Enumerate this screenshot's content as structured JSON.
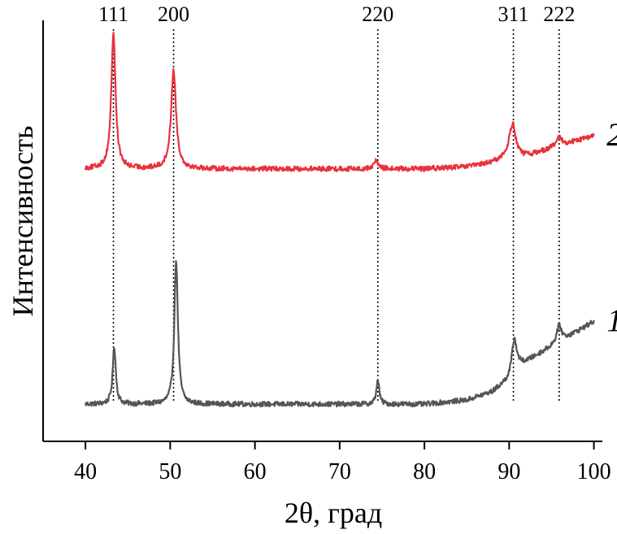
{
  "chart_data": {
    "type": "line",
    "xlabel": "2θ, град",
    "ylabel": "Интенсивность",
    "xlim": [
      35,
      101
    ],
    "ylim": [
      0,
      100
    ],
    "x_ticks": [
      40,
      50,
      60,
      70,
      80,
      90,
      100
    ],
    "y_ticks_shown": false,
    "grid": false,
    "peak_markers": [
      {
        "label": "111",
        "x": 43.3
      },
      {
        "label": "200",
        "x": 50.4
      },
      {
        "label": "220",
        "x": 74.5
      },
      {
        "label": "311",
        "x": 90.5
      },
      {
        "label": "222",
        "x": 95.9
      }
    ],
    "series": [
      {
        "name": "1",
        "color": "#555555",
        "baseline": 9,
        "baseline_noise": 0.6,
        "background_rise": [
          [
            80,
            0
          ],
          [
            85,
            1
          ],
          [
            88,
            3
          ],
          [
            90,
            6
          ],
          [
            91,
            9
          ],
          [
            95,
            14
          ],
          [
            100,
            20
          ]
        ],
        "peaks": [
          {
            "x": 43.4,
            "height": 14,
            "width": 0.22
          },
          {
            "x": 50.7,
            "height": 35,
            "width": 0.25
          },
          {
            "x": 74.5,
            "height": 6,
            "width": 0.2
          },
          {
            "x": 90.6,
            "height": 8,
            "width": 0.35
          },
          {
            "x": 95.9,
            "height": 4,
            "width": 0.35
          }
        ]
      },
      {
        "name": "2",
        "color": "#e8323c",
        "baseline": 66,
        "baseline_noise": 0.6,
        "background_rise": [
          [
            80,
            0
          ],
          [
            85,
            0.5
          ],
          [
            88,
            1.5
          ],
          [
            90,
            3
          ],
          [
            92,
            3
          ],
          [
            95,
            5
          ],
          [
            100,
            8
          ]
        ],
        "peaks": [
          {
            "x": 43.3,
            "height": 33,
            "width": 0.3
          },
          {
            "x": 50.4,
            "height": 24,
            "width": 0.35
          },
          {
            "x": 74.3,
            "height": 2,
            "width": 0.3
          },
          {
            "x": 90.4,
            "height": 8,
            "width": 0.45
          },
          {
            "x": 95.9,
            "height": 2,
            "width": 0.4
          }
        ]
      }
    ]
  }
}
